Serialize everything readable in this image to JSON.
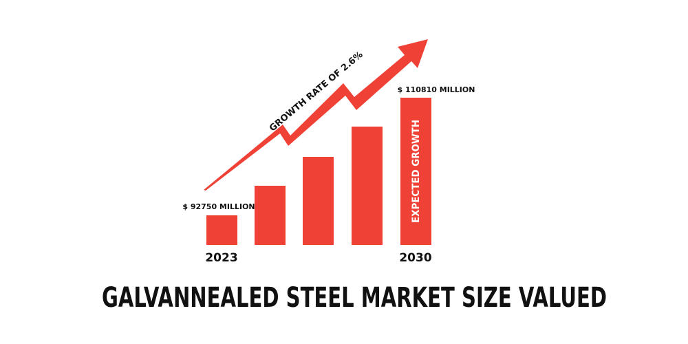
{
  "title": "GALVANNEALED STEEL MARKET SIZE VALUED",
  "growth_label": "GROWTH RATE OF 2.6%",
  "start": {
    "year": "2023",
    "value_label": "$ 92750 MILLION"
  },
  "end": {
    "year": "2030",
    "value_label": "$ 110810 MILLION",
    "bar_label": "EXPECTED GROWTH"
  }
}
